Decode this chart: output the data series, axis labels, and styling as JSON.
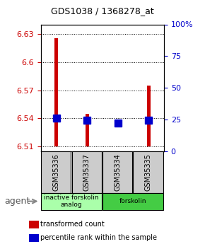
{
  "title": "GDS1038 / 1368278_at",
  "samples": [
    "GSM35336",
    "GSM35337",
    "GSM35334",
    "GSM35335"
  ],
  "bar_values": [
    6.625,
    6.545,
    6.51,
    6.575
  ],
  "bar_base": 6.51,
  "percentile_values": [
    6.54,
    6.538,
    6.535,
    6.538
  ],
  "ylim_left": [
    6.505,
    6.64
  ],
  "left_yticks": [
    6.51,
    6.54,
    6.57,
    6.6,
    6.63
  ],
  "right_yticks": [
    0,
    25,
    50,
    75,
    100
  ],
  "right_ylabels": [
    "0",
    "25",
    "50",
    "75",
    "100%"
  ],
  "bar_color": "#cc0000",
  "percentile_color": "#0000cc",
  "groups": [
    {
      "label": "inactive forskolin\nanalog",
      "start": 0,
      "end": 2,
      "color": "#aaffaa"
    },
    {
      "label": "forskolin",
      "start": 2,
      "end": 4,
      "color": "#44cc44"
    }
  ],
  "agent_label": "agent",
  "legend_items": [
    {
      "color": "#cc0000",
      "label": "transformed count"
    },
    {
      "color": "#0000cc",
      "label": "percentile rank within the sample"
    }
  ],
  "sample_box_color": "#cccccc",
  "bar_width": 0.12,
  "percentile_marker_size": 7
}
